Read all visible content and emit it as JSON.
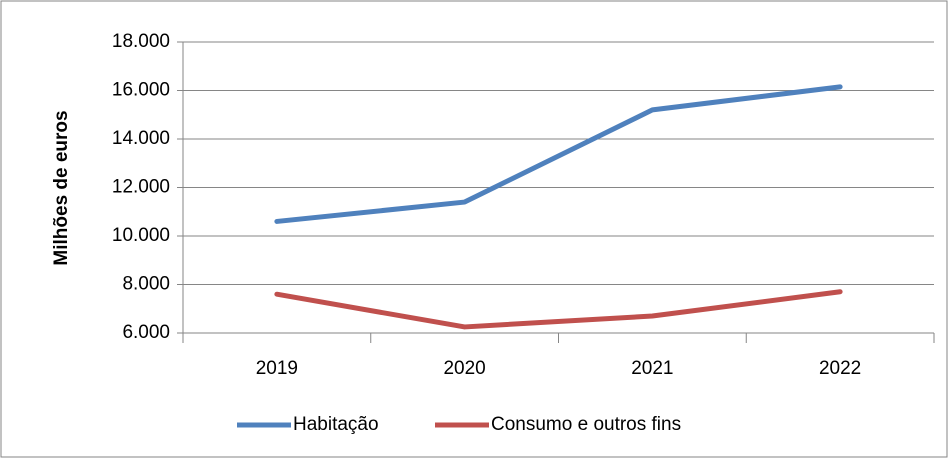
{
  "chart_data": {
    "type": "line",
    "y_label": "Milhões de euros",
    "categories": [
      "2019",
      "2020",
      "2021",
      "2022"
    ],
    "series": [
      {
        "name": "Habitação",
        "color": "#4f81bd",
        "values": [
          10600,
          11400,
          15200,
          16150
        ]
      },
      {
        "name": "Consumo e outros fins",
        "color": "#c0504d",
        "values": [
          7600,
          6250,
          6700,
          7700
        ]
      }
    ],
    "ylim": [
      6000,
      18000
    ],
    "yticks": [
      {
        "value": 6000,
        "label": "6.000"
      },
      {
        "value": 8000,
        "label": "8.000"
      },
      {
        "value": 10000,
        "label": "10.000"
      },
      {
        "value": 12000,
        "label": "12.000"
      },
      {
        "value": 14000,
        "label": "14.000"
      },
      {
        "value": 16000,
        "label": "16.000"
      },
      {
        "value": 18000,
        "label": "18.000"
      }
    ],
    "grid": true,
    "legend": "bottom"
  }
}
